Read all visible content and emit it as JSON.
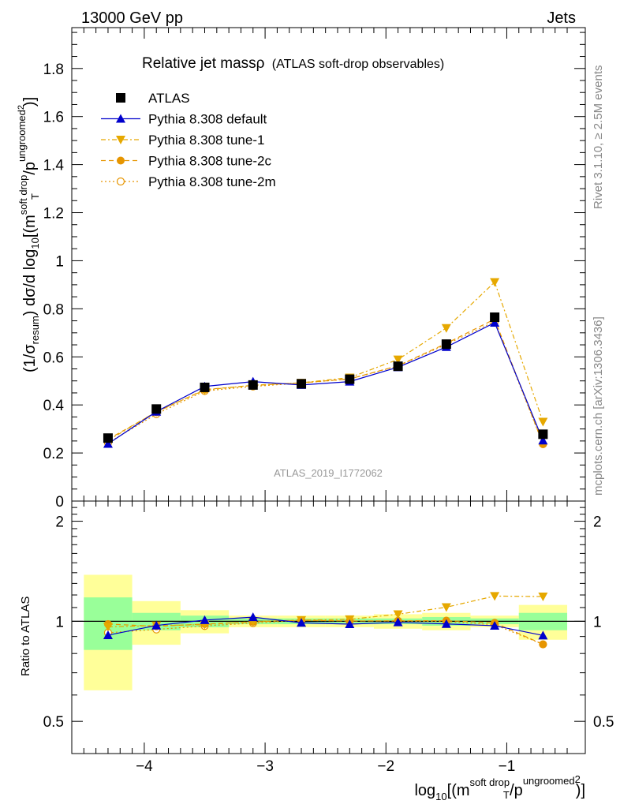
{
  "header": {
    "left": "13000 GeV pp",
    "right": "Jets"
  },
  "side_labels": {
    "rivet": "Rivet 3.1.10, ≥ 2.5M events",
    "mcplots": "mcplots.cern.ch [arXiv:1306.3436]"
  },
  "title": {
    "main": "Relative jet massρ",
    "sub": "(ATLAS soft-drop observables)"
  },
  "watermark": "ATLAS_2019_I1772062",
  "ylabel_main": {
    "a": "(1/σ",
    "a_sub": "resum",
    "b": ") dσ/d log",
    "b_sub": "10",
    "c": "[(m",
    "c_sup": "soft drop",
    "d": "/p",
    "d_sup": "ungroomed",
    "d_sup2": "2",
    "d_sub": "T",
    "e": ")]"
  },
  "ylabel_ratio": "Ratio to ATLAS",
  "xlabel": {
    "a": "log",
    "a_sub": "10",
    "b": "[(m",
    "b_sup": "soft drop",
    "c": "/p",
    "c_sup": "ungroomed",
    "c_sub": "T",
    "d_sup": "2",
    "e": ")]"
  },
  "chart_data": {
    "type": "line",
    "x_edges": [
      -4.5,
      -4.1,
      -3.7,
      -3.3,
      -2.9,
      -2.5,
      -2.1,
      -1.7,
      -1.3,
      -0.9,
      -0.5
    ],
    "x": [
      -4.3,
      -3.9,
      -3.5,
      -3.1,
      -2.7,
      -2.3,
      -1.9,
      -1.5,
      -1.1,
      -0.7
    ],
    "xlim": [
      -4.6,
      -0.35
    ],
    "ylim_main": [
      0,
      1.97
    ],
    "ylim_ratio": [
      0.4,
      2.3
    ],
    "ratio_scale": "log",
    "main_yticks": [
      {
        "v": 0,
        "label": "0"
      },
      {
        "v": 0.2,
        "label": "0.2"
      },
      {
        "v": 0.4,
        "label": "0.4"
      },
      {
        "v": 0.6,
        "label": "0.6"
      },
      {
        "v": 0.8,
        "label": "0.8"
      },
      {
        "v": 1.0,
        "label": "1"
      },
      {
        "v": 1.2,
        "label": "1.2"
      },
      {
        "v": 1.4,
        "label": "1.4"
      },
      {
        "v": 1.6,
        "label": "1.6"
      },
      {
        "v": 1.8,
        "label": "1.8"
      }
    ],
    "ratio_yticks": [
      {
        "v": 0.5,
        "label": "0.5"
      },
      {
        "v": 1,
        "label": "1"
      },
      {
        "v": 2,
        "label": "2"
      }
    ],
    "xticks": [
      {
        "v": -4,
        "label": "−4"
      },
      {
        "v": -3,
        "label": "−3"
      },
      {
        "v": -2,
        "label": "−2"
      },
      {
        "v": -1,
        "label": "−1"
      }
    ],
    "legend_position": "top-left",
    "grid": false,
    "series": [
      {
        "name": "ATLAS",
        "color": "#000000",
        "marker": "square",
        "line": "none",
        "values": [
          0.262,
          0.383,
          0.473,
          0.483,
          0.488,
          0.507,
          0.561,
          0.653,
          0.765,
          0.278
        ]
      },
      {
        "name": "Pythia 8.308 default",
        "color": "#0000cc",
        "marker": "triangle-up",
        "line": "solid",
        "values": [
          0.238,
          0.372,
          0.477,
          0.497,
          0.483,
          0.497,
          0.557,
          0.641,
          0.742,
          0.252
        ]
      },
      {
        "name": "Pythia 8.308 tune-1",
        "color": "#e6a800",
        "marker": "triangle-down",
        "line": "dashdot",
        "values": [
          0.252,
          0.372,
          0.462,
          0.482,
          0.492,
          0.514,
          0.589,
          0.72,
          0.911,
          0.33
        ]
      },
      {
        "name": "Pythia 8.308 tune-2c",
        "color": "#e69500",
        "marker": "circle",
        "line": "dashed",
        "values": [
          0.257,
          0.37,
          0.464,
          0.481,
          0.492,
          0.508,
          0.563,
          0.656,
          0.757,
          0.237
        ]
      },
      {
        "name": "Pythia 8.308 tune-2m",
        "color": "#e69500",
        "marker": "circle-open",
        "line": "dotted",
        "values": [
          0.242,
          0.362,
          0.458,
          0.477,
          0.491,
          0.508,
          0.562,
          0.652,
          0.747,
          0.237
        ]
      }
    ],
    "ratio_bands": {
      "green_half_width": [
        0.18,
        0.06,
        0.04,
        0.02,
        0.02,
        0.02,
        0.02,
        0.03,
        0.02,
        0.06
      ],
      "yellow_half_width": [
        0.38,
        0.15,
        0.08,
        0.04,
        0.04,
        0.04,
        0.05,
        0.06,
        0.04,
        0.12
      ]
    }
  }
}
